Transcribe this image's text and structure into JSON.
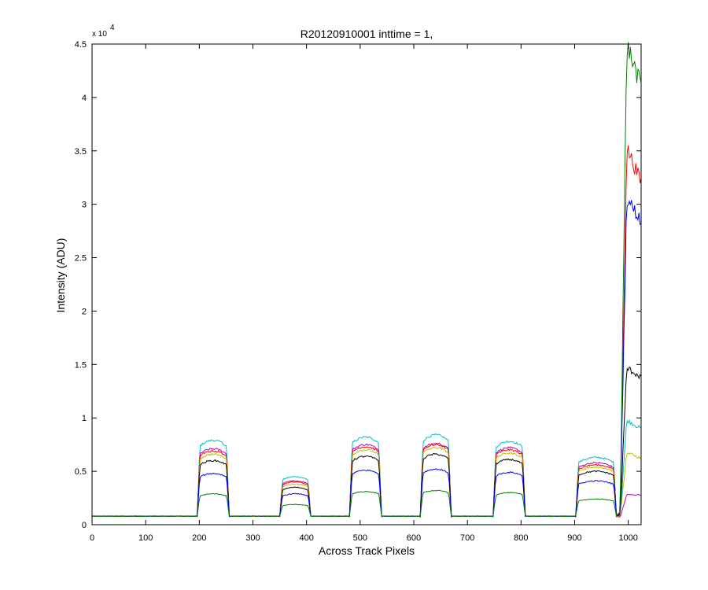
{
  "chart_data": {
    "type": "line",
    "title": "R20120910001 inttime = 1,",
    "xlabel": "Across Track Pixels",
    "ylabel": "Intensity (ADU)",
    "xlim": [
      0,
      1024
    ],
    "ylim": [
      0,
      45000
    ],
    "x_ticks": [
      0,
      100,
      200,
      300,
      400,
      500,
      600,
      700,
      800,
      900,
      1000
    ],
    "y_ticks": [
      0,
      5000,
      10000,
      15000,
      20000,
      25000,
      30000,
      35000,
      40000,
      45000
    ],
    "y_tick_labels": [
      "0",
      "0.5",
      "1",
      "1.5",
      "2",
      "2.5",
      "3",
      "3.5",
      "4",
      "4.5"
    ],
    "y_exponent_base": "x 10",
    "y_exponent_power": "4",
    "grid": false,
    "baseline": 800,
    "plateaus": [
      {
        "x": [
          196,
          256
        ]
      },
      {
        "x": [
          350,
          408
        ]
      },
      {
        "x": [
          480,
          540
        ]
      },
      {
        "x": [
          612,
          670
        ]
      },
      {
        "x": [
          748,
          808
        ]
      },
      {
        "x": [
          902,
          978
        ]
      }
    ],
    "edge_rise_x": 985,
    "series": [
      {
        "color": "#00bfbf",
        "plateau_values": [
          7900,
          4500,
          8200,
          8400,
          7800,
          6300
        ],
        "edge_values": [
          900,
          9700,
          9000
        ]
      },
      {
        "color": "#bf00bf",
        "plateau_values": [
          7100,
          4100,
          7500,
          7600,
          7200,
          5800
        ],
        "edge_values": [
          700,
          2800,
          2800
        ]
      },
      {
        "color": "#ff0000",
        "plateau_values": [
          6900,
          4000,
          7300,
          7500,
          7000,
          5600
        ],
        "edge_values": [
          1200,
          35000,
          32000
        ]
      },
      {
        "color": "#bfbf00",
        "plateau_values": [
          6600,
          3800,
          7000,
          7200,
          6700,
          5400
        ],
        "edge_values": [
          800,
          6700,
          6200
        ]
      },
      {
        "color": "#000000",
        "plateau_values": [
          6000,
          3500,
          6400,
          6600,
          6100,
          5000
        ],
        "edge_values": [
          900,
          14600,
          13800
        ]
      },
      {
        "color": "#0000ff",
        "plateau_values": [
          4800,
          2900,
          5100,
          5200,
          4900,
          4100
        ],
        "edge_values": [
          1000,
          30400,
          28400
        ]
      },
      {
        "color": "#008000",
        "plateau_values": [
          2900,
          1900,
          3100,
          3200,
          3000,
          2400
        ],
        "edge_values": [
          1100,
          44600,
          41000
        ]
      }
    ]
  }
}
